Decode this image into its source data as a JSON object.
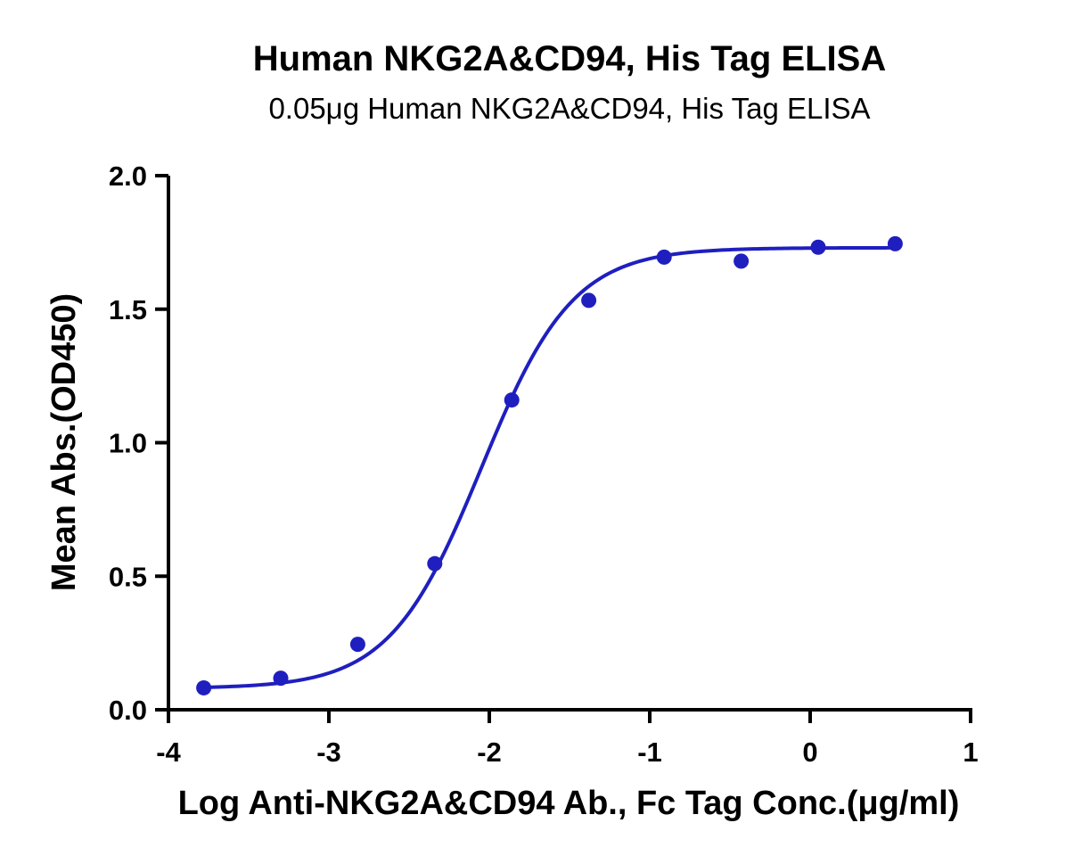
{
  "chart_data": {
    "type": "scatter",
    "title": "Human NKG2A&CD94, His Tag ELISA",
    "subtitle": "0.05μg Human NKG2A&CD94, His Tag ELISA",
    "xlabel": "Log Anti-NKG2A&CD94 Ab., Fc Tag Conc.(μg/ml)",
    "ylabel": "Mean Abs.(OD450)",
    "xlim": [
      -4,
      1
    ],
    "ylim": [
      0,
      2.0
    ],
    "xticks": [
      -4,
      -3,
      -2,
      -1,
      0,
      1
    ],
    "xtick_labels": [
      "-4",
      "-3",
      "-2",
      "-1",
      "0",
      "1"
    ],
    "yticks": [
      0,
      0.5,
      1.0,
      1.5,
      2.0
    ],
    "ytick_labels": [
      "0.0",
      "0.5",
      "1.0",
      "1.5",
      "2.0"
    ],
    "grid": false,
    "series": [
      {
        "color": "#1f1fbf",
        "x": [
          -3.78,
          -3.3,
          -2.82,
          -2.34,
          -1.86,
          -1.38,
          -0.91,
          -0.43,
          0.05,
          0.53
        ],
        "y": [
          0.082,
          0.118,
          0.245,
          0.547,
          1.16,
          1.533,
          1.695,
          1.68,
          1.732,
          1.745
        ]
      }
    ],
    "fit_curve": {
      "model": "4PL",
      "bottom": 0.08,
      "top": 1.73,
      "log_ec50": -2.05,
      "hill_slope": 1.52,
      "color": "#1f1fbf"
    }
  }
}
